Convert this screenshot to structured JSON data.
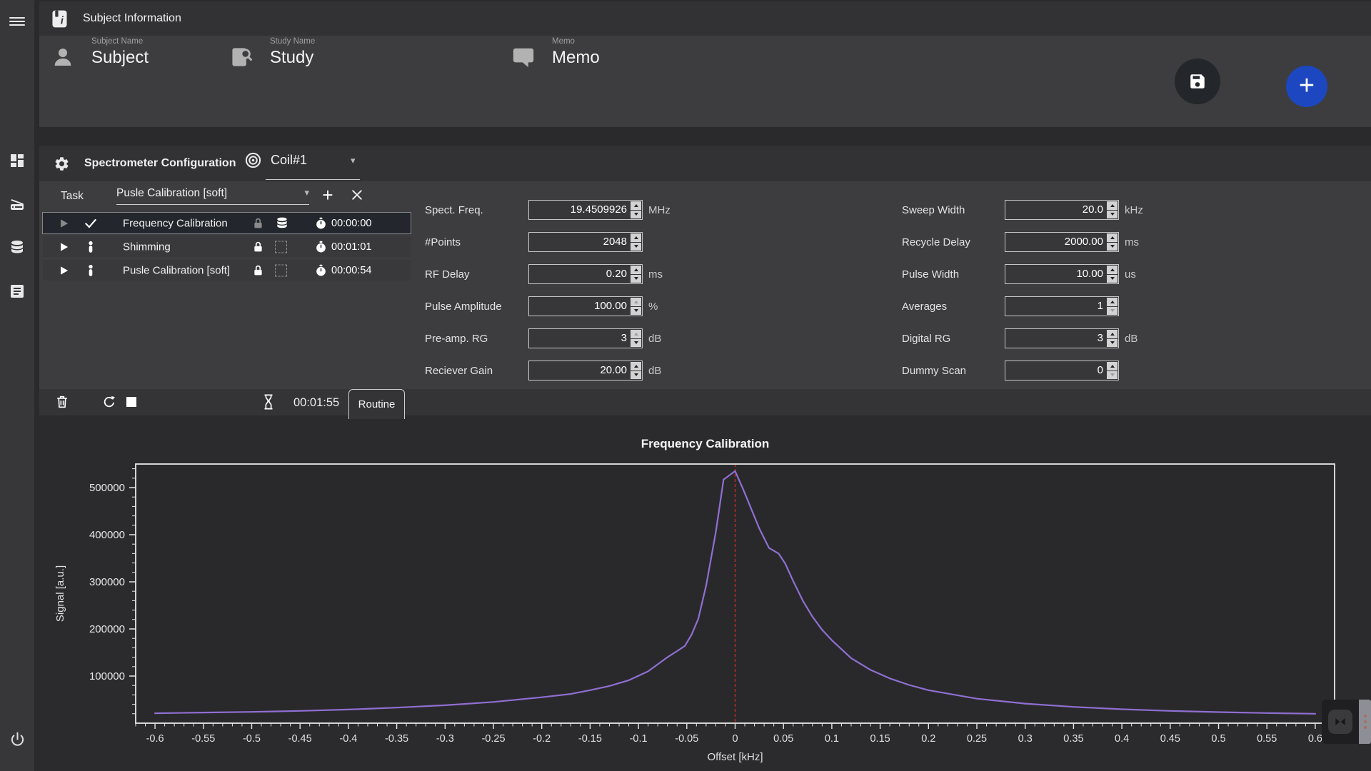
{
  "header": {
    "title": "Subject Information"
  },
  "subject": {
    "fields": [
      {
        "icon": "person-icon",
        "label": "Subject Name",
        "value": "Subject"
      },
      {
        "icon": "study-icon",
        "label": "Study Name",
        "value": "Study"
      },
      {
        "icon": "memo-icon",
        "label": "Memo",
        "value": "Memo"
      }
    ]
  },
  "config": {
    "title": "Spectrometer Configuration",
    "coil": "Coil#1",
    "task_label": "Task",
    "task_selected": "Pusle Calibration [soft]",
    "tasks": [
      {
        "name": "Frequency Calibration",
        "time": "00:00:00",
        "status_icon": "check",
        "storage_icon": "database",
        "state": "selected"
      },
      {
        "name": "Shimming",
        "time": "00:01:01",
        "status_icon": "person",
        "storage_icon": "dashed-box",
        "state": ""
      },
      {
        "name": "Pusle Calibration [soft]",
        "time": "00:00:54",
        "status_icon": "person",
        "storage_icon": "dashed-box",
        "state": ""
      }
    ],
    "params_left": [
      {
        "label": "Spect. Freq.",
        "value": "19.4509926",
        "unit": "MHz",
        "dim_class": ""
      },
      {
        "label": "#Points",
        "value": "2048",
        "unit": "",
        "dim_class": ""
      },
      {
        "label": "RF Delay",
        "value": "0.20",
        "unit": "ms",
        "dim_class": ""
      },
      {
        "label": "Pulse Amplitude",
        "value": "100.00",
        "unit": "%",
        "dim_class": "dim-up"
      },
      {
        "label": "Pre-amp. RG",
        "value": "3",
        "unit": "dB",
        "dim_class": "dim-up"
      },
      {
        "label": "Reciever Gain",
        "value": "20.00",
        "unit": "dB",
        "dim_class": ""
      }
    ],
    "params_right": [
      {
        "label": "Sweep Width",
        "value": "20.0",
        "unit": "kHz",
        "dim_class": ""
      },
      {
        "label": "Recycle Delay",
        "value": "2000.00",
        "unit": "ms",
        "dim_class": ""
      },
      {
        "label": "Pulse Width",
        "value": "10.00",
        "unit": "us",
        "dim_class": ""
      },
      {
        "label": "Averages",
        "value": "1",
        "unit": "",
        "dim_class": "dim-down"
      },
      {
        "label": "Digital RG",
        "value": "3",
        "unit": "dB",
        "dim_class": ""
      },
      {
        "label": "Dummy Scan",
        "value": "0",
        "unit": "",
        "dim_class": "dim-down"
      }
    ],
    "elapsed": "00:01:55",
    "routine_tab": "Routine"
  },
  "glyphs": {
    "caret": "▾",
    "plus": "+"
  },
  "colors": {
    "accent_blue": "#1c47c0",
    "play_blue": "#3f58c6",
    "curve_purple": "#8f6fd2",
    "marker_red": "#bf2a20",
    "panel_bg": "#3d3d3f",
    "chart_bg": "#2b2b2d"
  },
  "chart_data": {
    "type": "line",
    "title": "Frequency Calibration",
    "xlabel": "Offset [kHz]",
    "ylabel": "Signal [a.u.]",
    "xlim": [
      -0.62,
      0.62
    ],
    "ylim": [
      0,
      550000
    ],
    "x_major_tick_step": 0.05,
    "x_minor_tick_step": 0.01,
    "x_label_range": [
      -0.6,
      0.6
    ],
    "y_major_tick_step": 100000,
    "y_minor_tick_step": 20000,
    "grid": false,
    "marker_x": 0,
    "marker_color": "#bf2a20",
    "plot_bg": "#29292b",
    "series": [
      {
        "name": "Frequency Calibration",
        "color": "#8f6fd2",
        "points": [
          [
            -0.6,
            21000
          ],
          [
            -0.55,
            22500
          ],
          [
            -0.5,
            24000
          ],
          [
            -0.45,
            26000
          ],
          [
            -0.4,
            29000
          ],
          [
            -0.35,
            33000
          ],
          [
            -0.3,
            38000
          ],
          [
            -0.25,
            45000
          ],
          [
            -0.2,
            55000
          ],
          [
            -0.17,
            62000
          ],
          [
            -0.15,
            70000
          ],
          [
            -0.13,
            79000
          ],
          [
            -0.11,
            91000
          ],
          [
            -0.09,
            110000
          ],
          [
            -0.07,
            140000
          ],
          [
            -0.06,
            153000
          ],
          [
            -0.052,
            164000
          ],
          [
            -0.045,
            188000
          ],
          [
            -0.038,
            222000
          ],
          [
            -0.03,
            292000
          ],
          [
            -0.02,
            405000
          ],
          [
            -0.012,
            517000
          ],
          [
            0.0,
            535000
          ],
          [
            0.008,
            498000
          ],
          [
            0.016,
            458000
          ],
          [
            0.025,
            413000
          ],
          [
            0.035,
            372000
          ],
          [
            0.045,
            360000
          ],
          [
            0.052,
            338000
          ],
          [
            0.06,
            302000
          ],
          [
            0.07,
            260000
          ],
          [
            0.08,
            226000
          ],
          [
            0.09,
            198000
          ],
          [
            0.1,
            176000
          ],
          [
            0.12,
            138000
          ],
          [
            0.14,
            113000
          ],
          [
            0.16,
            95000
          ],
          [
            0.18,
            81000
          ],
          [
            0.2,
            70000
          ],
          [
            0.25,
            52000
          ],
          [
            0.3,
            41500
          ],
          [
            0.35,
            34500
          ],
          [
            0.4,
            29500
          ],
          [
            0.45,
            26000
          ],
          [
            0.5,
            23500
          ],
          [
            0.55,
            21500
          ],
          [
            0.6,
            20000
          ]
        ]
      }
    ]
  }
}
